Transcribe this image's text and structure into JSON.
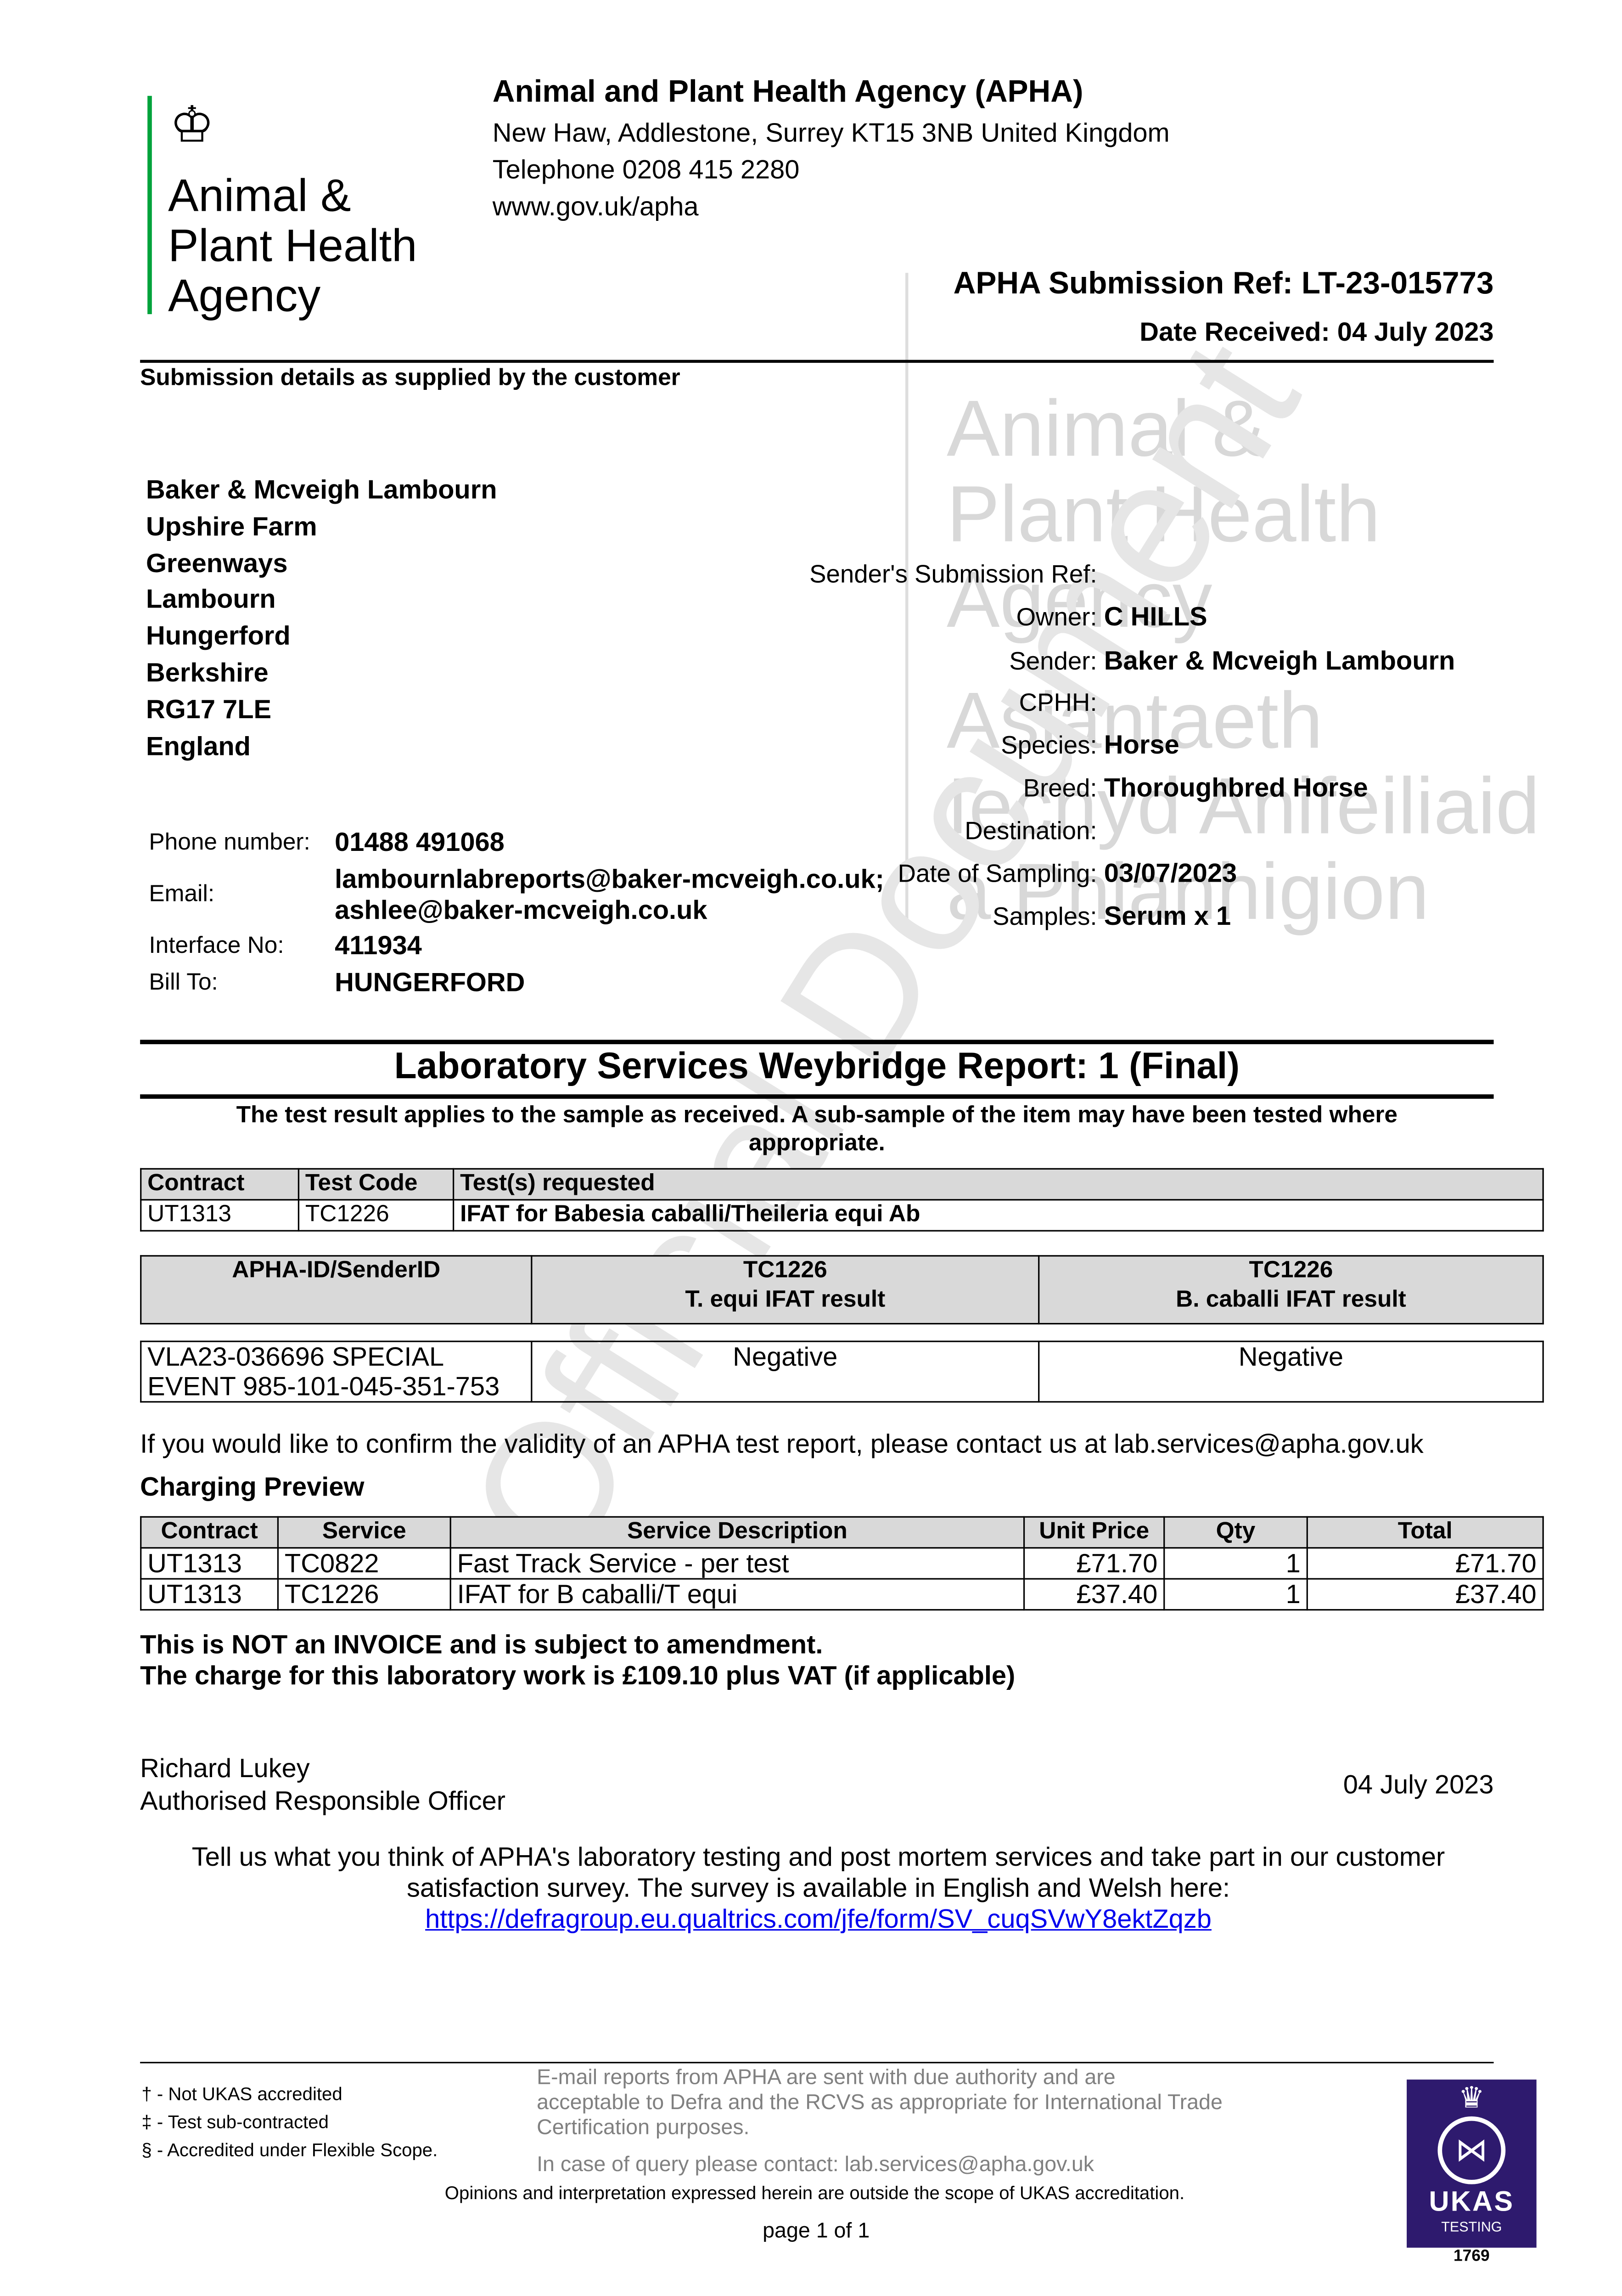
{
  "agency": {
    "logo_text": [
      "Animal &",
      "Plant Health",
      "Agency"
    ],
    "name": "Animal and Plant Health Agency (APHA)",
    "address": "New Haw, Addlestone, Surrey KT15 3NB United Kingdom",
    "telephone": "Telephone 0208 415 2280",
    "website": "www.gov.uk/apha"
  },
  "submission": {
    "ref": "APHA Submission Ref: LT-23-015773",
    "date_received": "Date Received: 04 July 2023",
    "section_title": "Submission details as supplied by the customer"
  },
  "watermark": {
    "lines": [
      "Animal &",
      "Plant Health",
      "Agency",
      "Asiantaeth",
      "Iechyd Anifeiliaid",
      "a Phlanhigion"
    ],
    "diagonal": "Official Document"
  },
  "customer_address": [
    "Baker & Mcveigh Lambourn",
    "Upshire Farm",
    "Greenways",
    "Lambourn",
    "Hungerford",
    "Berkshire",
    "RG17 7LE",
    "England"
  ],
  "sender_fields": [
    {
      "label": "Sender's Submission Ref:",
      "value": ""
    },
    {
      "label": "Owner:",
      "value": "C HILLS"
    },
    {
      "label": "Sender:",
      "value": "Baker & Mcveigh Lambourn"
    },
    {
      "label": "CPHH:",
      "value": ""
    },
    {
      "label": "Species:",
      "value": "Horse"
    },
    {
      "label": "Breed:",
      "value": "Thoroughbred Horse"
    },
    {
      "label": "Destination:",
      "value": ""
    },
    {
      "label": "Date of Sampling:",
      "value": "03/07/2023"
    },
    {
      "label": "Samples:",
      "value": "Serum x 1"
    }
  ],
  "contact": {
    "phone_label": "Phone number:",
    "phone": "01488 491068",
    "email_label": "Email:",
    "email_1": "lambournlabreports@baker-mcveigh.co.uk;",
    "email_2": "ashlee@baker-mcveigh.co.uk",
    "interface_label": "Interface No:",
    "interface": "411934",
    "bill_label": "Bill To:",
    "bill": "HUNGERFORD"
  },
  "report": {
    "title": "Laboratory Services Weybridge Report: 1 (Final)",
    "note": "The test result applies to the sample as received. A sub-sample of the item may have been tested where appropriate."
  },
  "tests_table": {
    "headers": [
      "Contract",
      "Test Code",
      "Test(s) requested"
    ],
    "rows": [
      [
        "UT1313",
        "TC1226",
        "IFAT for Babesia caballi/Theileria equi Ab"
      ]
    ]
  },
  "results_table": {
    "headers": [
      [
        "APHA-ID/SenderID",
        ""
      ],
      [
        "TC1226",
        "T. equi IFAT result"
      ],
      [
        "TC1226",
        "B. caballi IFAT result"
      ]
    ],
    "rows": [
      [
        "VLA23-036696 SPECIAL",
        "EVENT 985-101-045-351-753",
        "Negative",
        "Negative"
      ]
    ]
  },
  "validity_note": "If you would like to confirm the validity of an APHA test report, please contact us at lab.services@apha.gov.uk",
  "charging": {
    "title": "Charging Preview",
    "headers": [
      "Contract",
      "Service",
      "Service Description",
      "Unit Price",
      "Qty",
      "Total"
    ],
    "rows": [
      [
        "UT1313",
        "TC0822",
        "Fast Track Service - per test",
        "£71.70",
        "1",
        "£71.70"
      ],
      [
        "UT1313",
        "TC1226",
        "IFAT for B caballi/T equi",
        "£37.40",
        "1",
        "£37.40"
      ]
    ],
    "not_invoice": "This is NOT an INVOICE and is subject to amendment.",
    "total_note": "The charge for this laboratory work is £109.10 plus VAT (if applicable)"
  },
  "signoff": {
    "name": "Richard Lukey",
    "role": "Authorised Responsible Officer",
    "date": "04 July 2023"
  },
  "survey": {
    "line1": "Tell us what you think of APHA's laboratory testing and post mortem services and take part in our customer",
    "line2": "satisfaction survey. The survey is available in English and Welsh here:",
    "link": "https://defragroup.eu.qualtrics.com/jfe/form/SV_cuqSVwY8ektZqzb"
  },
  "footer": {
    "legend": [
      "† - Not UKAS accredited",
      "‡ - Test sub-contracted",
      "§ - Accredited under Flexible Scope."
    ],
    "email_note": [
      "E-mail reports from APHA are sent with due authority and are",
      "acceptable to Defra and the RCVS as appropriate for International Trade",
      "Certification purposes."
    ],
    "query": "In case of query please contact: lab.services@apha.gov.uk",
    "opinions": "Opinions and interpretation expressed herein are outside the scope of UKAS accreditation.",
    "page": "page 1 of 1",
    "ukas": {
      "name": "UKAS",
      "sub": "TESTING",
      "number": "1769",
      "color": "#2e1a6e"
    }
  }
}
